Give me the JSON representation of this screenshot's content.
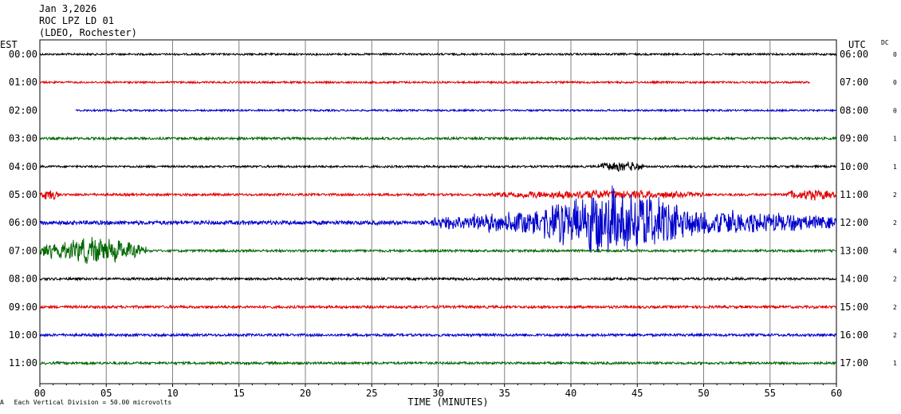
{
  "header": {
    "date": "Jan 3,2026",
    "station": "ROC LPZ LD 01",
    "network": "(LDEO, Rochester)"
  },
  "left_header": "EST",
  "right_header": "UTC",
  "dc_header": "DC",
  "footnote": {
    "mark": "A",
    "text": "Each Vertical Division =   50.00 microvolts"
  },
  "chart_data": {
    "type": "line",
    "title": "ROC LPZ LD 01",
    "xlabel": "TIME (MINUTES)",
    "xlim": [
      0,
      60
    ],
    "x_ticks": [
      "00",
      "05",
      "10",
      "15",
      "20",
      "25",
      "30",
      "35",
      "40",
      "45",
      "50",
      "55",
      "60"
    ],
    "grid": true,
    "trace_colors": [
      "#000000",
      "#e00000",
      "#0000cc",
      "#006600"
    ],
    "rows": [
      {
        "est": "00:00",
        "utc": "06:00",
        "dc": "0",
        "start_min": 0,
        "end_min": 60,
        "noise": 1.2,
        "events": []
      },
      {
        "est": "01:00",
        "utc": "07:00",
        "dc": "0",
        "start_min": 0,
        "end_min": 58,
        "noise": 1.2,
        "events": []
      },
      {
        "est": "02:00",
        "utc": "08:00",
        "dc": "0",
        "start_min": 2.7,
        "end_min": 60,
        "noise": 1.1,
        "events": []
      },
      {
        "est": "03:00",
        "utc": "09:00",
        "dc": "1",
        "start_min": 0,
        "end_min": 60,
        "noise": 1.5,
        "events": []
      },
      {
        "est": "04:00",
        "utc": "10:00",
        "dc": "1",
        "start_min": 0,
        "end_min": 60,
        "noise": 1.3,
        "events": [
          {
            "t0": 42,
            "t1": 45.5,
            "amp": 6
          }
        ]
      },
      {
        "est": "05:00",
        "utc": "11:00",
        "dc": "2",
        "start_min": 0,
        "end_min": 60,
        "noise": 1.5,
        "events": [
          {
            "t0": 0,
            "t1": 1.5,
            "amp": 5
          },
          {
            "t0": 34,
            "t1": 50,
            "amp": 4
          },
          {
            "t0": 56,
            "t1": 60,
            "amp": 5
          }
        ]
      },
      {
        "est": "06:00",
        "utc": "12:00",
        "dc": "2",
        "start_min": 0,
        "end_min": 60,
        "noise": 2.5,
        "events": [
          {
            "t0": 29.5,
            "t1": 60,
            "amp": 14
          },
          {
            "t0": 38,
            "t1": 48,
            "amp": 22
          }
        ]
      },
      {
        "est": "07:00",
        "utc": "13:00",
        "dc": "4",
        "start_min": 0,
        "end_min": 60,
        "noise": 1.5,
        "events": [
          {
            "t0": 0,
            "t1": 8,
            "amp": 13
          }
        ]
      },
      {
        "est": "08:00",
        "utc": "14:00",
        "dc": "2",
        "start_min": 0,
        "end_min": 60,
        "noise": 1.5,
        "events": []
      },
      {
        "est": "09:00",
        "utc": "15:00",
        "dc": "2",
        "start_min": 0,
        "end_min": 60,
        "noise": 1.6,
        "events": []
      },
      {
        "est": "10:00",
        "utc": "16:00",
        "dc": "2",
        "start_min": 0,
        "end_min": 60,
        "noise": 1.6,
        "events": []
      },
      {
        "est": "11:00",
        "utc": "17:00",
        "dc": "1",
        "start_min": 0,
        "end_min": 60,
        "noise": 1.5,
        "events": []
      }
    ]
  }
}
